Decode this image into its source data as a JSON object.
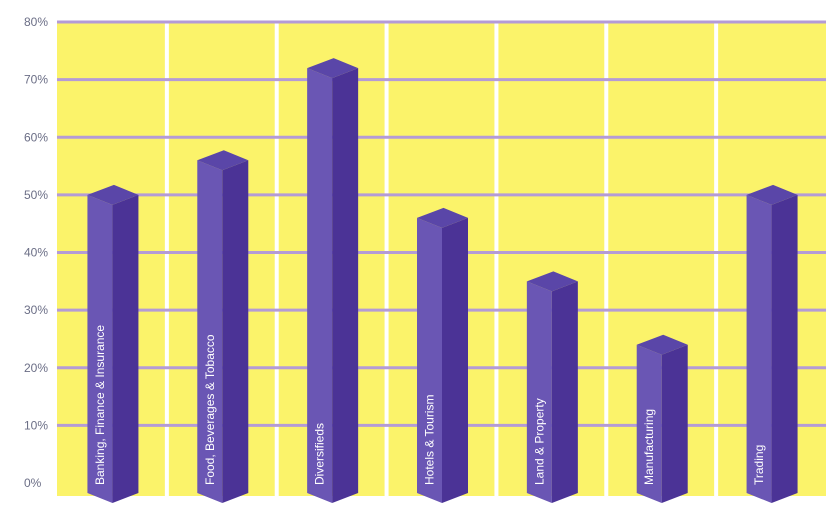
{
  "colors": {
    "plot_background": "#fbf36a",
    "column_separator": "#ffffff",
    "gridline": "#b49bd6",
    "bar_front": "#6a56b4",
    "bar_side": "#4b3396",
    "bar_top": "#5a46a8",
    "tick_text": "#6b6e86",
    "bar_text": "#ffffff"
  },
  "chart_data": {
    "type": "bar",
    "orientation": "vertical",
    "style": "3d-columns",
    "categories": [
      "Banking, Finance & Insurance",
      "Food, Beverages & Tobacco",
      "Diversifieds",
      "Hotels & Tourism",
      "Land & Property",
      "Manufacturing",
      "Trading"
    ],
    "values": [
      50,
      56,
      72,
      46,
      35,
      24,
      50
    ],
    "ylim": [
      0,
      80
    ],
    "yticks": [
      "0%",
      "10%",
      "20%",
      "30%",
      "40%",
      "50%",
      "60%",
      "70%",
      "80%"
    ],
    "grid": true,
    "legend": "none",
    "category_labels_inside_bars": true
  }
}
